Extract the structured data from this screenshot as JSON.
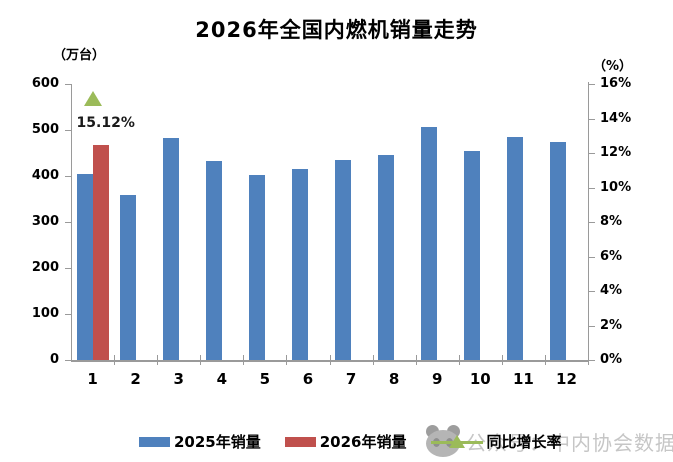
{
  "title": "2026年全国内燃机销量走势",
  "left_axis_unit": "（万台）",
  "right_axis_unit": "（%）",
  "annotation_text": "15.12%",
  "legend": [
    {
      "label": "2025年销量",
      "marker": "rect",
      "color": "#4F81BD"
    },
    {
      "label": "2026年销量",
      "marker": "rect",
      "color": "#C0504D"
    },
    {
      "label": "同比增长率",
      "marker": "triangle-line",
      "color": "#9BBB59"
    }
  ],
  "watermark": {
    "icon": "panda-logo",
    "text": "公众号：中内协会数据"
  },
  "colors": {
    "bar_2025": "#4F81BD",
    "bar_2026": "#C0504D",
    "growth_marker": "#9BBB59",
    "axis_line": "#9a9a9a",
    "watermark_gray": "#c6c6c6"
  },
  "chart_data": {
    "type": "bar",
    "title": "2026年全国内燃机销量走势",
    "categories": [
      "1",
      "2",
      "3",
      "4",
      "5",
      "6",
      "7",
      "8",
      "9",
      "10",
      "11",
      "12"
    ],
    "series": [
      {
        "name": "2025年销量",
        "type": "bar",
        "axis": "left",
        "color": "#4F81BD",
        "values": [
          405,
          358,
          483,
          433,
          403,
          416,
          435,
          445,
          507,
          454,
          485,
          475
        ]
      },
      {
        "name": "2026年销量",
        "type": "bar",
        "axis": "left",
        "color": "#C0504D",
        "values": [
          468,
          null,
          null,
          null,
          null,
          null,
          null,
          null,
          null,
          null,
          null,
          null
        ]
      },
      {
        "name": "同比增长率",
        "type": "scatter",
        "marker": "triangle",
        "axis": "right",
        "color": "#9BBB59",
        "values": [
          15.12,
          null,
          null,
          null,
          null,
          null,
          null,
          null,
          null,
          null,
          null,
          null
        ],
        "data_labels": [
          "15.12%",
          null,
          null,
          null,
          null,
          null,
          null,
          null,
          null,
          null,
          null,
          null
        ]
      }
    ],
    "left_axis": {
      "label": "（万台）",
      "min": 0,
      "max": 600,
      "step": 100,
      "ticks": [
        "0",
        "100",
        "200",
        "300",
        "400",
        "500",
        "600"
      ]
    },
    "right_axis": {
      "label": "（%）",
      "min": 0,
      "max": 16,
      "step": 2,
      "unit": "%",
      "ticks": [
        "0%",
        "2%",
        "4%",
        "6%",
        "8%",
        "10%",
        "12%",
        "14%",
        "16%"
      ]
    },
    "grid": false,
    "legend_position": "bottom"
  }
}
